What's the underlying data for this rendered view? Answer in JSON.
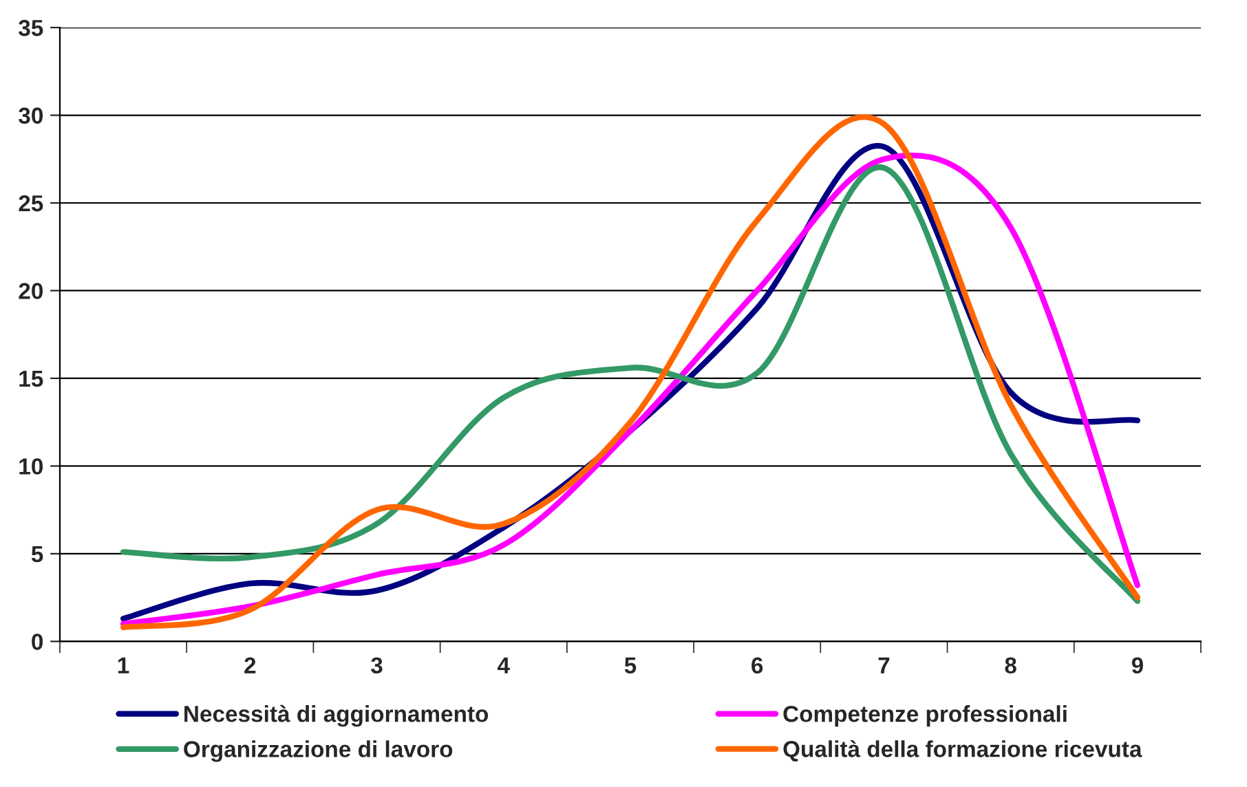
{
  "chart_data": {
    "type": "line",
    "categories": [
      "1",
      "2",
      "3",
      "4",
      "5",
      "6",
      "7",
      "8",
      "9"
    ],
    "series": [
      {
        "name": "Necessità di aggiornamento",
        "color": "#000080",
        "values": [
          1.3,
          3.3,
          2.9,
          6.5,
          12.0,
          19.0,
          28.2,
          14.2,
          12.6
        ]
      },
      {
        "name": "Competenze professionali",
        "color": "#ff00ff",
        "values": [
          1.0,
          2.0,
          3.8,
          5.5,
          12.0,
          20.0,
          27.5,
          23.6,
          3.2
        ]
      },
      {
        "name": "Organizzazione di lavoro",
        "color": "#339966",
        "values": [
          5.1,
          4.8,
          6.7,
          13.9,
          15.6,
          15.3,
          27.0,
          10.7,
          2.3
        ]
      },
      {
        "name": "Qualità della formazione ricevuta",
        "color": "#ff6600",
        "values": [
          0.8,
          1.8,
          7.5,
          6.7,
          12.5,
          24.0,
          29.5,
          13.5,
          2.5
        ]
      }
    ],
    "ylim": [
      0,
      35
    ],
    "yticks": [
      0,
      5,
      10,
      15,
      20,
      25,
      30,
      35
    ],
    "grid": "y",
    "legend": "bottom",
    "line_style": "solid"
  }
}
